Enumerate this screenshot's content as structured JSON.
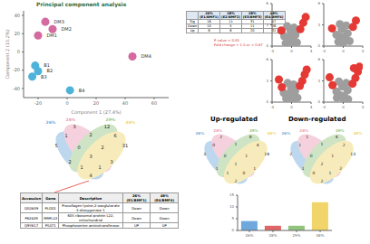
{
  "chart_data": [
    {
      "type": "scatter",
      "title": "Principal component analysis",
      "x_label": "Component 1 (27.4%)",
      "y_label": "Component 2 (10.2%)",
      "xlim": [
        -30,
        70
      ],
      "xticks": [
        -20,
        0,
        20,
        40,
        60
      ],
      "ylim": [
        -50,
        45
      ],
      "yticks": [
        -40,
        -20,
        0,
        20,
        40
      ],
      "series": [
        {
          "color": "#d46a9f",
          "points": [
            {
              "x": -15,
              "y": 33,
              "label": "DM3"
            },
            {
              "x": -10,
              "y": 25,
              "label": "DM2"
            },
            {
              "x": -20,
              "y": 18,
              "label": "DM1"
            },
            {
              "x": 45,
              "y": -5,
              "label": "DM4"
            }
          ]
        },
        {
          "color": "#4fb3d9",
          "points": [
            {
              "x": -22,
              "y": -15,
              "label": "B1"
            },
            {
              "x": -20,
              "y": -21,
              "label": "B2"
            },
            {
              "x": -24,
              "y": -27,
              "label": "B3"
            },
            {
              "x": 2,
              "y": -42,
              "label": "B4"
            }
          ]
        }
      ]
    },
    {
      "type": "scatter",
      "xlim": [
        -4,
        4
      ],
      "xticks": [
        -4,
        0,
        4
      ],
      "ylim": [
        0,
        6
      ],
      "yticks": [
        0,
        3,
        6
      ],
      "series": [
        {
          "color": "#9e9e9e",
          "points": [
            {
              "x": -1.2,
              "y": 0.4
            },
            {
              "x": -0.6,
              "y": 1.1
            },
            {
              "x": 0.3,
              "y": 0.8
            },
            {
              "x": 0.8,
              "y": 1.6
            },
            {
              "x": -0.2,
              "y": 2.1
            },
            {
              "x": 1.1,
              "y": 0.5
            },
            {
              "x": -1.5,
              "y": 1.4
            },
            {
              "x": 0.5,
              "y": 2.6
            },
            {
              "x": -0.9,
              "y": 2.8
            },
            {
              "x": 0.1,
              "y": 0.3
            }
          ]
        },
        {
          "color": "#e53935",
          "points": [
            {
              "x": 1.8,
              "y": 2.4
            },
            {
              "x": 2.4,
              "y": 3.3
            },
            {
              "x": -2.1,
              "y": 2.2
            },
            {
              "x": 2.9,
              "y": 4.1
            }
          ]
        }
      ]
    },
    {
      "type": "scatter",
      "xlim": [
        -4,
        4
      ],
      "xticks": [
        -4,
        0,
        4
      ],
      "ylim": [
        0,
        6
      ],
      "yticks": [
        0,
        3,
        6
      ],
      "series": [
        {
          "color": "#9e9e9e",
          "points": [
            {
              "x": -1.0,
              "y": 0.6
            },
            {
              "x": -0.4,
              "y": 1.3
            },
            {
              "x": 0.4,
              "y": 0.9
            },
            {
              "x": 0.9,
              "y": 1.8
            },
            {
              "x": -0.3,
              "y": 2.4
            },
            {
              "x": 1.3,
              "y": 0.7
            },
            {
              "x": -1.4,
              "y": 1.6
            },
            {
              "x": 0.6,
              "y": 2.9
            },
            {
              "x": -0.7,
              "y": 3.1
            },
            {
              "x": 0.0,
              "y": 0.4
            }
          ]
        },
        {
          "color": "#e53935",
          "points": [
            {
              "x": 2.0,
              "y": 2.7
            },
            {
              "x": 2.6,
              "y": 3.6
            },
            {
              "x": -2.3,
              "y": 2.5
            }
          ]
        }
      ]
    },
    {
      "type": "scatter",
      "xlim": [
        -4,
        4
      ],
      "xticks": [
        -4,
        0,
        4
      ],
      "ylim": [
        0,
        6
      ],
      "yticks": [
        0,
        3,
        6
      ],
      "series": [
        {
          "color": "#9e9e9e",
          "points": [
            {
              "x": -1.1,
              "y": 0.5
            },
            {
              "x": -0.5,
              "y": 1.2
            },
            {
              "x": 0.2,
              "y": 0.7
            },
            {
              "x": 0.7,
              "y": 1.5
            },
            {
              "x": -0.1,
              "y": 2.0
            },
            {
              "x": 1.2,
              "y": 0.6
            },
            {
              "x": -1.6,
              "y": 1.3
            },
            {
              "x": 0.4,
              "y": 2.5
            },
            {
              "x": -0.8,
              "y": 2.7
            },
            {
              "x": 0.1,
              "y": 0.2
            }
          ]
        },
        {
          "color": "#e53935",
          "points": [
            {
              "x": 1.7,
              "y": 2.3
            },
            {
              "x": 2.2,
              "y": 3.0
            },
            {
              "x": 2.7,
              "y": 3.9
            },
            {
              "x": -2.0,
              "y": 2.1
            },
            {
              "x": -2.6,
              "y": 3.2
            },
            {
              "x": 3.1,
              "y": 4.6
            }
          ]
        }
      ]
    },
    {
      "type": "scatter",
      "xlim": [
        -4,
        4
      ],
      "xticks": [
        -4,
        0,
        4
      ],
      "ylim": [
        0,
        6
      ],
      "yticks": [
        0,
        3,
        6
      ],
      "series": [
        {
          "color": "#9e9e9e",
          "points": [
            {
              "x": -1.3,
              "y": 0.6
            },
            {
              "x": -0.7,
              "y": 1.0
            },
            {
              "x": 0.2,
              "y": 0.9
            },
            {
              "x": 0.9,
              "y": 1.7
            },
            {
              "x": -0.2,
              "y": 2.2
            },
            {
              "x": 1.0,
              "y": 0.4
            },
            {
              "x": -1.4,
              "y": 1.5
            },
            {
              "x": 0.6,
              "y": 2.7
            },
            {
              "x": -0.9,
              "y": 2.9
            },
            {
              "x": 0.0,
              "y": 0.5
            }
          ]
        },
        {
          "color": "#e53935",
          "points": [
            {
              "x": 1.9,
              "y": 2.6
            },
            {
              "x": 2.5,
              "y": 3.4
            },
            {
              "x": 3.0,
              "y": 4.3
            },
            {
              "x": -2.2,
              "y": 2.4
            },
            {
              "x": -2.8,
              "y": 3.5
            },
            {
              "x": 3.3,
              "y": 5.0
            },
            {
              "x": 2.2,
              "y": 4.8
            }
          ]
        }
      ]
    },
    {
      "type": "bar",
      "categories": [
        "26%",
        "28%",
        "29%",
        "48%"
      ],
      "values": [
        4,
        2,
        2,
        12
      ],
      "colors": [
        "#6fa8dc",
        "#e06666",
        "#93c47d",
        "#f1d56b"
      ],
      "ylim": [
        0,
        15
      ],
      "yticks": [
        0,
        5,
        10,
        15
      ]
    }
  ],
  "table_top": {
    "columns": [
      "",
      "26% (E1/BMF1)",
      "28% (E2/BMF2)",
      "29% (E3/BMF3)",
      "48% (E4/BMF4)"
    ],
    "rows": [
      [
        "Sig",
        16,
        11,
        31,
        57
      ],
      [
        "Down",
        10,
        5,
        11,
        26
      ],
      [
        "Up",
        6,
        6,
        20,
        31
      ]
    ],
    "notes": [
      "P value < 0.05",
      "Fold change > 1.5 or < 0.67"
    ]
  },
  "venn_all": {
    "sets": [
      "26%",
      "28%",
      "29%",
      "48%"
    ],
    "regions": [
      5,
      3,
      12,
      31,
      1,
      2,
      4,
      2,
      3,
      6,
      0,
      1,
      1,
      2,
      3
    ]
  },
  "venn_up": {
    "title": "Up-regulated",
    "sets": [
      "26%",
      "28%",
      "29%",
      "48%"
    ],
    "regions": [
      3,
      2,
      8,
      18,
      0,
      1,
      2,
      1,
      1,
      4,
      0,
      0,
      1,
      1,
      1
    ]
  },
  "venn_down": {
    "title": "Down-regulated",
    "sets": [
      "26%",
      "28%",
      "29%",
      "48%"
    ],
    "regions": [
      2,
      1,
      4,
      13,
      1,
      1,
      2,
      1,
      2,
      2,
      0,
      1,
      0,
      1,
      2
    ]
  },
  "table_bottom": {
    "columns": [
      "Accession",
      "Gene",
      "Description",
      "26% (E1/BMF1)",
      "48% (E4/BMF4)"
    ],
    "rows": [
      [
        "Q02809",
        "PLOD1",
        "Procollagen-lysine,2-oxoglutarate 5-dioxygenase 1",
        "Down",
        "Down"
      ],
      [
        "P62829",
        "MRPL22",
        "60S ribosomal protein L22, mitochondrial",
        "Down",
        "Down"
      ],
      [
        "Q9Y617",
        "PSAT1",
        "Phosphoserine aminotransferase",
        "UP",
        "UP"
      ]
    ]
  }
}
